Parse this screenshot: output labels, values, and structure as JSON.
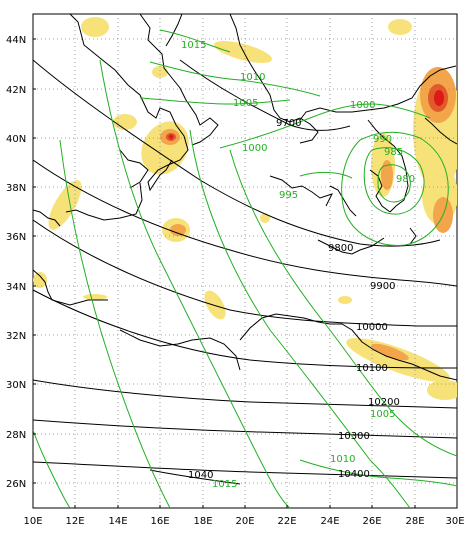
{
  "map": {
    "x_ticks": [
      "10E",
      "12E",
      "14E",
      "16E",
      "18E",
      "20E",
      "22E",
      "24E",
      "26E",
      "28E",
      "30E"
    ],
    "y_ticks": [
      "44N",
      "42N",
      "40N",
      "38N",
      "36N",
      "34N",
      "32N",
      "30N",
      "28N",
      "26N"
    ],
    "geopotential_labels": [
      "9700",
      "9800",
      "9900",
      "10000",
      "10100",
      "10200",
      "10300",
      "10400",
      "1040"
    ],
    "pressure_labels": [
      "1015",
      "1010",
      "1005",
      "1000",
      "1000",
      "990",
      "985",
      "980",
      "995",
      "1005",
      "1010",
      "1015"
    ],
    "colors": {
      "geopotential": "#000000",
      "pressure": "#22b022",
      "shade_light": "#f7e27a",
      "shade_mid": "#f2a54a",
      "shade_strong": "#e05a2a",
      "shade_max": "#e01818"
    }
  }
}
